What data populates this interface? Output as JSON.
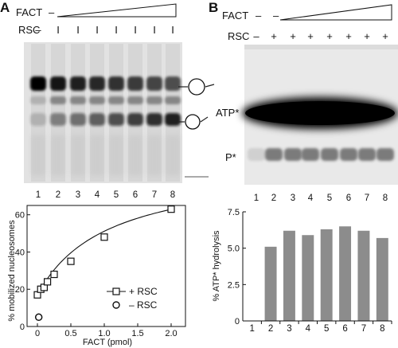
{
  "panel_a": {
    "letter": "A",
    "fact_label": "FACT",
    "fact_lane1_sign": "–",
    "rsc_label": "RSC",
    "rsc_marks": [
      "–",
      "I",
      "I",
      "I",
      "I",
      "I",
      "I",
      "I"
    ],
    "lane_numbers": [
      "1",
      "2",
      "3",
      "4",
      "5",
      "6",
      "7",
      "8"
    ]
  },
  "panel_b": {
    "letter": "B",
    "fact_label": "FACT",
    "fact_signs": [
      "–",
      "–"
    ],
    "rsc_label": "RSC",
    "rsc_marks": [
      "–",
      "+",
      "+",
      "+",
      "+",
      "+",
      "+",
      "+"
    ],
    "band_labels": {
      "atp": "ATP*",
      "p": "P*"
    },
    "lane_numbers": [
      "1",
      "2",
      "3",
      "4",
      "5",
      "6",
      "7",
      "8"
    ]
  },
  "chart_data": [
    {
      "type": "scatter",
      "title": "",
      "xlabel": "FACT (pmol)",
      "ylabel": "% mobilized nucleosomes",
      "xlim": [
        0,
        2.0
      ],
      "ylim": [
        0,
        65
      ],
      "x_ticks": [
        "0",
        "0.5",
        "1.0",
        "1.5",
        "2.0"
      ],
      "y_ticks": [
        "0",
        "20",
        "40",
        "60"
      ],
      "series": [
        {
          "name": "+ RSC",
          "marker": "square",
          "x": [
            0,
            0.05,
            0.1,
            0.15,
            0.25,
            0.5,
            1.0,
            2.0
          ],
          "y": [
            17,
            20,
            21,
            24,
            28,
            35,
            48,
            63
          ]
        },
        {
          "name": "– RSC",
          "marker": "circle",
          "x": [
            0.02
          ],
          "y": [
            5
          ]
        }
      ],
      "fit_curve": true,
      "legend_position": "bottom-right"
    },
    {
      "type": "bar",
      "title": "",
      "xlabel": "",
      "ylabel": "% ATP* hydrolysis",
      "categories": [
        "1",
        "2",
        "3",
        "4",
        "5",
        "6",
        "7",
        "8"
      ],
      "values": [
        0,
        5.1,
        6.2,
        5.9,
        6.3,
        6.5,
        6.2,
        5.7
      ],
      "ylim": [
        0,
        7.5
      ],
      "y_ticks": [
        "0",
        "2.5",
        "5.0",
        "7.5"
      ],
      "bar_color": "#8c8c8c"
    }
  ]
}
